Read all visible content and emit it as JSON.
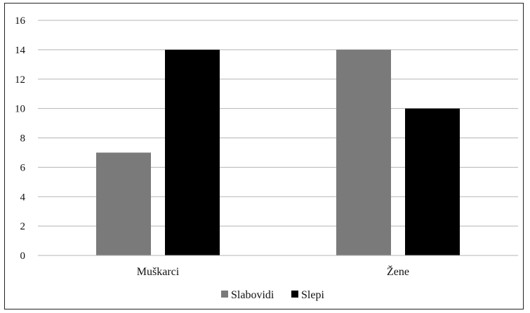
{
  "chart_data": {
    "type": "bar",
    "categories": [
      "Muškarci",
      "Žene"
    ],
    "series": [
      {
        "name": "Slabovidi",
        "values": [
          7,
          14
        ],
        "color": "#7a7a7a"
      },
      {
        "name": "Slepi",
        "values": [
          14,
          10
        ],
        "color": "#000000"
      }
    ],
    "ylim": [
      0,
      16
    ],
    "yticks": [
      "0",
      "2",
      "4",
      "6",
      "8",
      "10",
      "12",
      "14",
      "16"
    ],
    "grid": true,
    "legend_position": "bottom"
  }
}
